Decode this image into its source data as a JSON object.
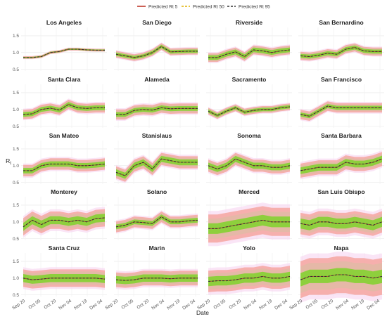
{
  "chart_data": {
    "type": "line",
    "xlabel": "Date",
    "ylabel": "R",
    "ylabel_sub": "t",
    "x_ticks": [
      "Sep 20",
      "Oct 05",
      "Oct 20",
      "Nov 04",
      "Nov 19",
      "Dec 04"
    ],
    "y_ticks": [
      0.5,
      1.0,
      1.5
    ],
    "ylim": [
      0.45,
      1.75
    ],
    "legend_position": "top",
    "legend": [
      {
        "name": "Predicted Rt 5",
        "color": "#c0392b",
        "dash": "solid"
      },
      {
        "name": "Predicted Rt 50",
        "color": "#e0b000",
        "dash": "dashed"
      },
      {
        "name": "Predicted Rt 95",
        "color": "#333333",
        "dash": "dashed"
      }
    ],
    "band_colors": {
      "outer": "#f4a6a0",
      "mid": "#e3b9a6",
      "inner": "#8ecf3d",
      "outermost": "#f7d3f0"
    },
    "panels": [
      {
        "name": "Los Angeles",
        "median": [
          0.85,
          0.85,
          0.88,
          1.0,
          1.03,
          1.1,
          1.1,
          1.08,
          1.07,
          1.07
        ],
        "inner": 0.02,
        "mid": 0.03,
        "outer": 0.04
      },
      {
        "name": "San Diego",
        "median": [
          0.95,
          0.9,
          0.85,
          0.9,
          1.0,
          1.18,
          1.02,
          1.03,
          1.04,
          1.04
        ],
        "inner": 0.05,
        "mid": 0.08,
        "outer": 0.1
      },
      {
        "name": "Riverside",
        "median": [
          0.85,
          0.85,
          0.95,
          1.02,
          0.88,
          1.08,
          1.05,
          1.0,
          1.05,
          1.08
        ],
        "inner": 0.07,
        "mid": 0.11,
        "outer": 0.13
      },
      {
        "name": "San Bernardino",
        "median": [
          0.9,
          0.88,
          0.92,
          0.98,
          0.95,
          1.1,
          1.15,
          1.05,
          1.03,
          1.03
        ],
        "inner": 0.06,
        "mid": 0.1,
        "outer": 0.12
      },
      {
        "name": "Santa Clara",
        "median": [
          0.85,
          0.87,
          1.0,
          1.04,
          0.98,
          1.15,
          1.05,
          1.03,
          1.05,
          1.05
        ],
        "inner": 0.07,
        "mid": 0.1,
        "outer": 0.14
      },
      {
        "name": "Alameda",
        "median": [
          0.85,
          0.85,
          0.97,
          1.0,
          0.98,
          1.05,
          1.02,
          1.03,
          1.03,
          1.03
        ],
        "inner": 0.07,
        "mid": 0.12,
        "outer": 0.15
      },
      {
        "name": "Sacramento",
        "median": [
          0.95,
          0.82,
          0.95,
          1.05,
          0.92,
          0.97,
          1.0,
          1.0,
          1.05,
          1.08
        ],
        "inner": 0.05,
        "mid": 0.08,
        "outer": 0.1
      },
      {
        "name": "San Francisco",
        "median": [
          0.85,
          0.8,
          0.95,
          1.1,
          1.05,
          1.05,
          1.05,
          1.05,
          1.05,
          1.05
        ],
        "inner": 0.06,
        "mid": 0.1,
        "outer": 0.14
      },
      {
        "name": "San Mateo",
        "median": [
          0.85,
          0.85,
          1.0,
          1.05,
          1.05,
          1.05,
          1.0,
          1.0,
          1.02,
          1.05
        ],
        "inner": 0.08,
        "mid": 0.13,
        "outer": 0.17
      },
      {
        "name": "Stanislaus",
        "median": [
          0.8,
          0.7,
          1.0,
          1.1,
          0.9,
          1.2,
          1.15,
          1.1,
          1.1,
          1.1
        ],
        "inner": 0.09,
        "mid": 0.14,
        "outer": 0.18
      },
      {
        "name": "Sonoma",
        "median": [
          1.0,
          0.9,
          1.0,
          1.2,
          1.1,
          1.0,
          1.0,
          0.95,
          0.95,
          1.0
        ],
        "inner": 0.09,
        "mid": 0.14,
        "outer": 0.18
      },
      {
        "name": "Santa Barbara",
        "median": [
          0.85,
          0.9,
          0.95,
          0.95,
          0.95,
          1.1,
          1.05,
          1.05,
          1.1,
          1.2
        ],
        "inner": 0.1,
        "mid": 0.16,
        "outer": 0.21
      },
      {
        "name": "Monterey",
        "median": [
          0.85,
          1.05,
          0.92,
          1.05,
          1.05,
          1.0,
          1.05,
          1.0,
          1.1,
          1.12
        ],
        "inner": 0.12,
        "mid": 0.2,
        "outer": 0.26
      },
      {
        "name": "Solano",
        "median": [
          0.85,
          0.9,
          1.0,
          0.98,
          0.95,
          1.15,
          1.0,
          1.0,
          1.03,
          1.05
        ],
        "inner": 0.07,
        "mid": 0.12,
        "outer": 0.16
      },
      {
        "name": "Merced",
        "median": [
          0.8,
          0.8,
          0.85,
          0.9,
          0.95,
          1.0,
          1.05,
          1.0,
          1.0,
          1.0
        ],
        "inner": 0.16,
        "mid": 0.3,
        "outer": 0.42
      },
      {
        "name": "San Luis Obispo",
        "median": [
          0.95,
          0.9,
          1.0,
          1.0,
          0.95,
          0.95,
          1.0,
          0.95,
          0.9,
          1.0
        ],
        "inner": 0.15,
        "mid": 0.24,
        "outer": 0.32
      },
      {
        "name": "Santa Cruz",
        "median": [
          1.0,
          0.95,
          0.97,
          1.0,
          1.0,
          1.0,
          1.0,
          1.0,
          1.0,
          0.97
        ],
        "inner": 0.12,
        "mid": 0.2,
        "outer": 0.26
      },
      {
        "name": "Marin",
        "median": [
          0.95,
          0.93,
          0.95,
          1.0,
          1.0,
          1.0,
          0.98,
          1.0,
          1.0,
          1.0
        ],
        "inner": 0.11,
        "mid": 0.18,
        "outer": 0.22
      },
      {
        "name": "Yolo",
        "median": [
          0.9,
          0.92,
          0.92,
          0.95,
          1.0,
          1.0,
          1.05,
          1.0,
          1.0,
          1.05
        ],
        "inner": 0.14,
        "mid": 0.24,
        "outer": 0.32
      },
      {
        "name": "Napa",
        "median": [
          0.95,
          1.05,
          1.05,
          1.05,
          1.1,
          1.1,
          1.05,
          1.05,
          1.0,
          1.05
        ],
        "inner": 0.2,
        "mid": 0.4,
        "outer": 0.55
      }
    ]
  }
}
